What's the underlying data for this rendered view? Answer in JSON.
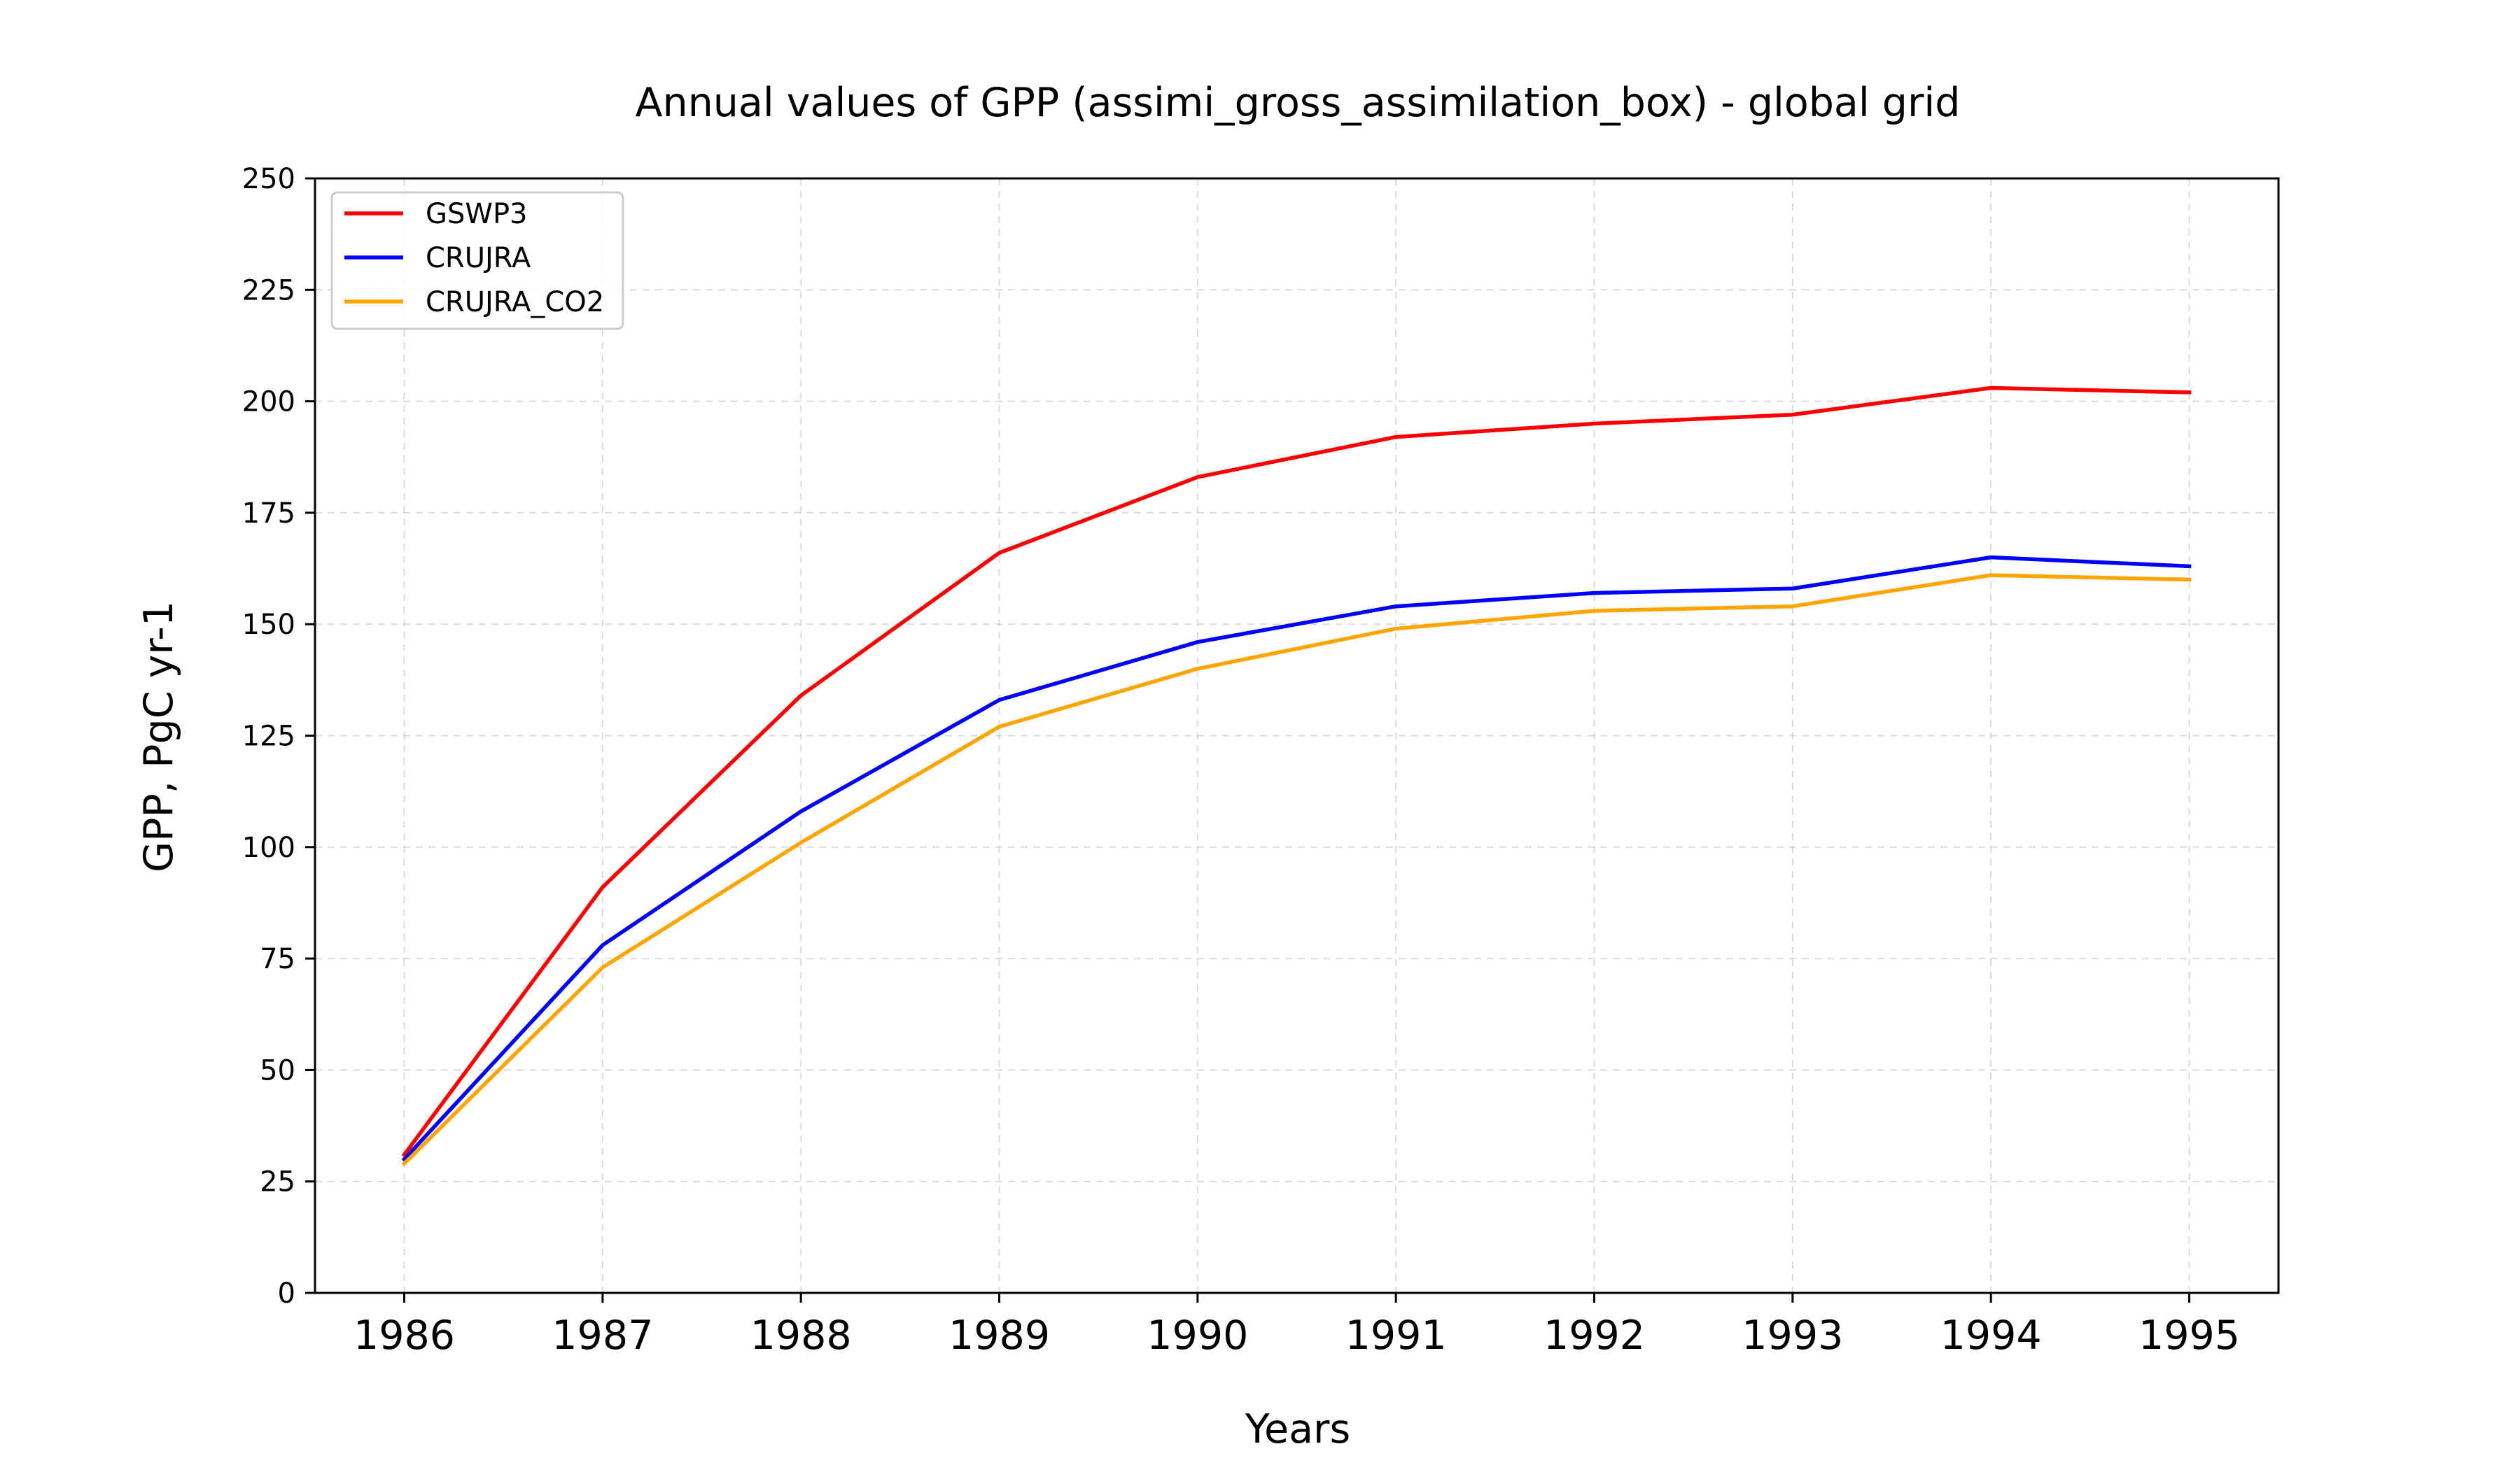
{
  "chart_data": {
    "type": "line",
    "title": "Annual values of GPP (assimi_gross_assimilation_box) - global grid",
    "xlabel": "Years",
    "ylabel": "GPP, PgC yr-1",
    "x": [
      1986,
      1987,
      1988,
      1989,
      1990,
      1991,
      1992,
      1993,
      1994,
      1995
    ],
    "xlim": [
      1985.55,
      1995.45
    ],
    "ylim": [
      0,
      250
    ],
    "yticks": [
      0,
      25,
      50,
      75,
      100,
      125,
      150,
      175,
      200,
      225,
      250
    ],
    "grid": true,
    "legend_position": "top-left",
    "series": [
      {
        "name": "GSWP3",
        "color": "#ff0000",
        "values": [
          31,
          91,
          134,
          166,
          183,
          192,
          195,
          197,
          203,
          202
        ]
      },
      {
        "name": "CRUJRA",
        "color": "#0000ff",
        "values": [
          30,
          78,
          108,
          133,
          146,
          154,
          157,
          158,
          165,
          163
        ]
      },
      {
        "name": "CRUJRA_CO2",
        "color": "#ffa500",
        "values": [
          29,
          73,
          101,
          127,
          140,
          149,
          153,
          154,
          161,
          160
        ]
      }
    ]
  }
}
